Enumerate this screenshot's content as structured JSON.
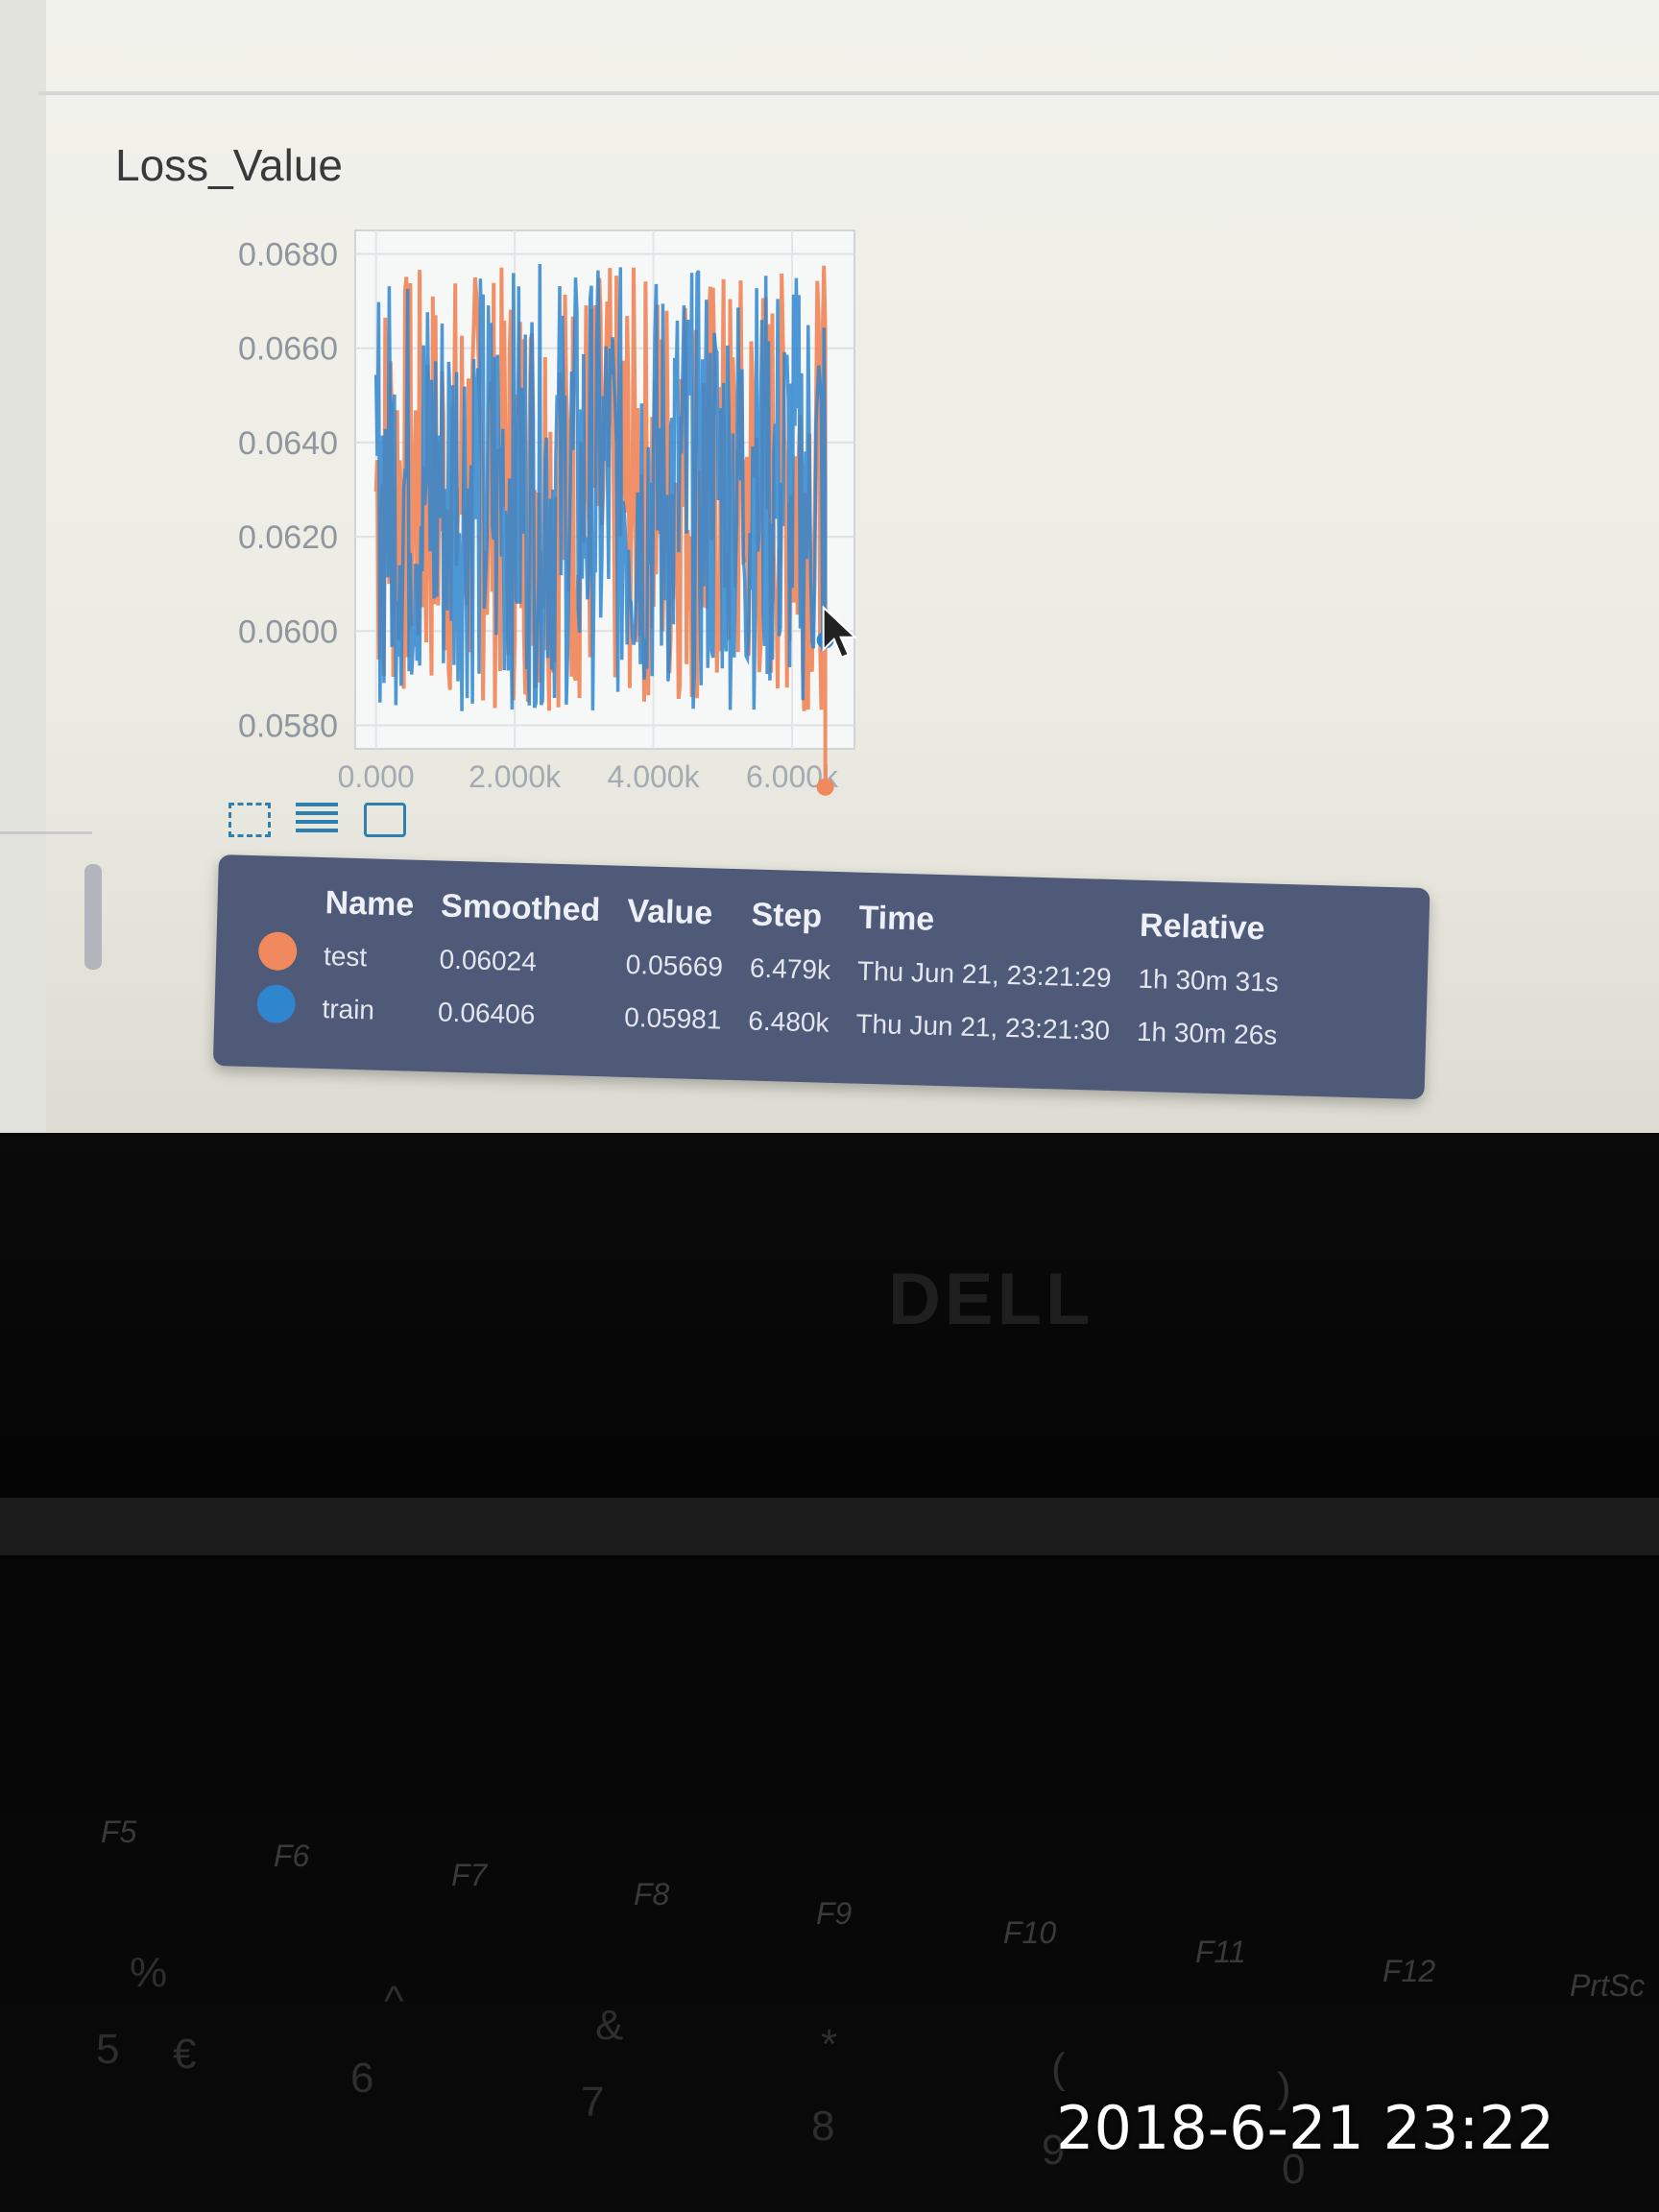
{
  "card": {
    "title": "Loss_Value"
  },
  "chart_data": {
    "type": "line",
    "y_ticks": [
      "0.0680",
      "0.0660",
      "0.0640",
      "0.0620",
      "0.0600",
      "0.0580"
    ],
    "y_tick_values": [
      0.068,
      0.066,
      0.064,
      0.062,
      0.06,
      0.058
    ],
    "x_ticks": [
      "0.000",
      "2.000k",
      "4.000k",
      "6.000k"
    ],
    "x_tick_values": [
      0,
      2000,
      4000,
      6000
    ],
    "ylim": [
      0.0575,
      0.0685
    ],
    "xlim": [
      -300,
      6900
    ],
    "grid": true,
    "series": [
      {
        "name": "test",
        "color": "#f0895e",
        "last_value": 0.05669,
        "last_step": 6479
      },
      {
        "name": "train",
        "color": "#2f86cf",
        "last_value": 0.05981,
        "last_step": 6480
      }
    ]
  },
  "toolbar": {
    "icons": [
      "fullscreen-icon",
      "data-lines-icon",
      "fit-domain-icon"
    ]
  },
  "tooltip": {
    "headers": {
      "name": "Name",
      "smoothed": "Smoothed",
      "value": "Value",
      "step": "Step",
      "time": "Time",
      "relative": "Relative"
    },
    "rows": [
      {
        "color": "#f0895e",
        "name": "test",
        "smoothed": "0.06024",
        "value": "0.05669",
        "step": "6.479k",
        "time": "Thu Jun 21, 23:21:29",
        "relative": "1h 30m 31s"
      },
      {
        "color": "#2f86cf",
        "name": "train",
        "smoothed": "0.06406",
        "value": "0.05981",
        "step": "6.480k",
        "time": "Thu Jun 21, 23:21:30",
        "relative": "1h 30m 26s"
      }
    ]
  },
  "laptop": {
    "logo": "DELL",
    "keys": [
      "F5",
      "F6",
      "F7",
      "F8",
      "F9",
      "F10",
      "F11",
      "F12",
      "PrtSc"
    ],
    "num_keys": [
      "%",
      "5",
      "€",
      "^",
      "6",
      "&",
      "7",
      "*",
      "8",
      "(",
      "9",
      ")",
      "0"
    ]
  },
  "photo": {
    "timestamp": "2018-6-21 23:22"
  }
}
